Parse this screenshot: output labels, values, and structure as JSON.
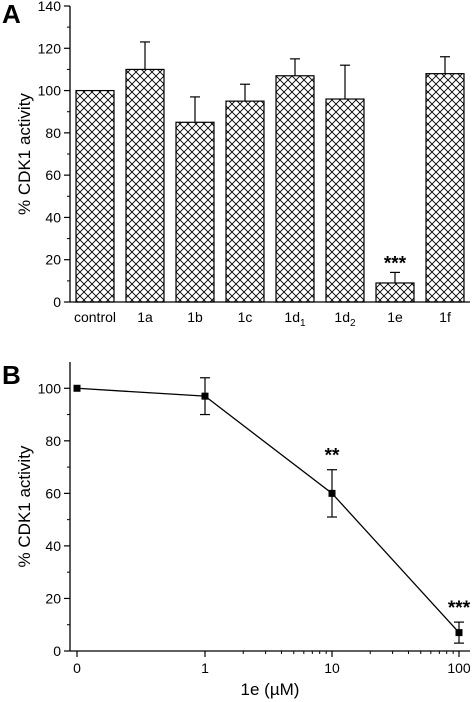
{
  "chart_data": [
    {
      "panel": "A",
      "type": "bar",
      "ylabel": "% CDK1 activity",
      "xlabel": "",
      "ylim": [
        0,
        140
      ],
      "yticks": [
        0,
        20,
        40,
        60,
        80,
        100,
        120,
        140
      ],
      "categories": [
        {
          "label": "control",
          "base": "control",
          "sub": ""
        },
        {
          "label": "1a",
          "base": "1a",
          "sub": ""
        },
        {
          "label": "1b",
          "base": "1b",
          "sub": ""
        },
        {
          "label": "1c",
          "base": "1c",
          "sub": ""
        },
        {
          "label": "1d1",
          "base": "1d",
          "sub": "1"
        },
        {
          "label": "1d2",
          "base": "1d",
          "sub": "2"
        },
        {
          "label": "1e",
          "base": "1e",
          "sub": ""
        },
        {
          "label": "1f",
          "base": "1f",
          "sub": ""
        }
      ],
      "values": [
        100,
        110,
        85,
        95,
        107,
        96,
        9,
        108
      ],
      "errors": [
        0,
        13,
        12,
        8,
        8,
        16,
        5,
        8
      ],
      "annotations": [
        "",
        "",
        "",
        "",
        "",
        "",
        "***",
        ""
      ],
      "fill_pattern": "crosshatch",
      "grid": false
    },
    {
      "panel": "B",
      "type": "line",
      "xlabel": "1e (µM)",
      "ylabel": "% CDK1 activity",
      "xscale": "log-with-zero",
      "ylim": [
        0,
        110
      ],
      "yticks": [
        0,
        20,
        40,
        60,
        80,
        100
      ],
      "xtick_labels": [
        "0",
        "1",
        "10",
        "100"
      ],
      "x": [
        0,
        1,
        10,
        100
      ],
      "y": [
        100,
        97,
        60,
        7
      ],
      "errors": [
        0,
        7,
        9,
        4
      ],
      "annotations": [
        "",
        "",
        "**",
        "***"
      ],
      "marker": "square",
      "grid": false
    }
  ]
}
